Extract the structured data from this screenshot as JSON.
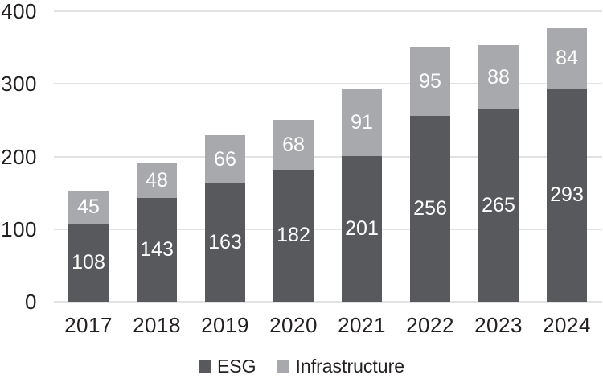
{
  "chart_data": {
    "type": "bar",
    "stacked": true,
    "title": "",
    "categories": [
      "2017",
      "2018",
      "2019",
      "2020",
      "2021",
      "2022",
      "2023",
      "2024"
    ],
    "series": [
      {
        "name": "ESG",
        "color": "#58595c",
        "values": [
          108,
          143,
          163,
          182,
          201,
          256,
          265,
          293
        ]
      },
      {
        "name": "Infrastructure",
        "color": "#a7a9ac",
        "values": [
          45,
          48,
          66,
          68,
          91,
          95,
          88,
          84
        ]
      }
    ],
    "ylim": [
      0,
      400
    ],
    "y_ticks": [
      0,
      100,
      200,
      300,
      400
    ],
    "xlabel": "",
    "ylabel": "",
    "grid": true,
    "legend_position": "bottom",
    "value_labels": true,
    "value_label_color": "#ffffff"
  },
  "colors": {
    "background": "#ffffff",
    "gridline": "#e2e2e2",
    "axis_text": "#231f20"
  }
}
